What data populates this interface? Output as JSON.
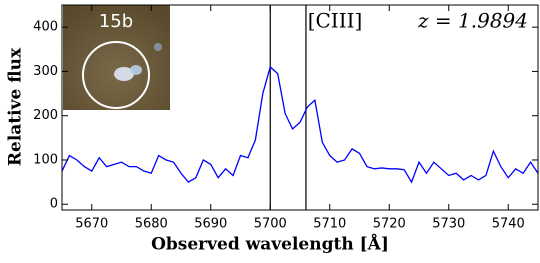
{
  "chart_data": {
    "type": "line",
    "xlabel": "Observed wavelength [Å]",
    "ylabel": "Relative flux",
    "annotations": [
      "[CIII]",
      "z = 1.9894"
    ],
    "inset_label": "15b",
    "x": [
      5665,
      5666.25,
      5667.5,
      5668.75,
      5670,
      5671.25,
      5672.5,
      5673.75,
      5675,
      5676.25,
      5677.5,
      5678.75,
      5680,
      5681.25,
      5682.5,
      5683.75,
      5685,
      5686.25,
      5687.5,
      5688.75,
      5690,
      5691.25,
      5692.5,
      5693.75,
      5695,
      5696.25,
      5697.5,
      5698.75,
      5700,
      5701.25,
      5702.5,
      5703.75,
      5705,
      5706.25,
      5707.5,
      5708.75,
      5710,
      5711.25,
      5712.5,
      5713.75,
      5715,
      5716.25,
      5717.5,
      5718.75,
      5720,
      5721.25,
      5722.5,
      5723.75,
      5725,
      5726.25,
      5727.5,
      5728.75,
      5730,
      5731.25,
      5732.5,
      5733.75,
      5735,
      5736.25,
      5737.5,
      5738.75,
      5740,
      5741.25,
      5742.5,
      5743.75,
      5745
    ],
    "values": [
      75,
      110,
      100,
      85,
      75,
      105,
      85,
      90,
      95,
      85,
      85,
      75,
      70,
      110,
      100,
      95,
      70,
      50,
      60,
      100,
      90,
      60,
      80,
      65,
      110,
      105,
      145,
      250,
      310,
      295,
      205,
      170,
      185,
      220,
      235,
      140,
      110,
      95,
      100,
      125,
      115,
      85,
      80,
      82,
      80,
      80,
      78,
      50,
      95,
      70,
      95,
      80,
      65,
      70,
      55,
      65,
      55,
      65,
      120,
      85,
      60,
      80,
      70,
      95,
      70
    ],
    "color": "#0000ff",
    "vlines": [
      5700,
      5706
    ],
    "xlim": [
      5665,
      5745
    ],
    "ylim": [
      -13,
      450
    ],
    "xticks": [
      5670,
      5680,
      5690,
      5700,
      5710,
      5720,
      5730,
      5740
    ],
    "yticks": [
      0,
      100,
      200,
      300,
      400
    ]
  }
}
